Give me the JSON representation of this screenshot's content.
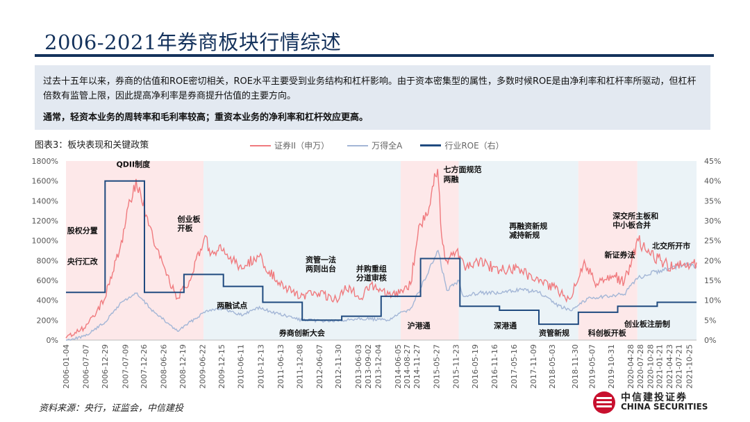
{
  "header": {
    "title": "2006-2021年券商板块行情综述"
  },
  "summary": {
    "text": "过去十五年以来，券商的估值和ROE密切相关，ROE水平主要受到业务结构和杠杆影响。由于资本密集型的属性，多数时候ROE是由净利率和杠杆率所驱动，但杠杆倍数有监管上限，因此提高净利率是券商提升估值的主要方向。",
    "bold": "通常，轻资本业务的周转率和毛利率较高；重资本业务的净利率和杠杆效应更高。"
  },
  "figure": {
    "label": "图表3：板块表现和关键政策"
  },
  "source": "资料来源：央行，证监会，中信建投",
  "logo": {
    "name": "中信建投证券",
    "en": "CHINA SECURITIES"
  },
  "colors": {
    "securities": "#f07a7e",
    "wind_a": "#a3b6d6",
    "roe": "#1f4a7f",
    "band": "#fde8e9",
    "band_light": "#ebf3f7",
    "title": "#14325c",
    "logo_red": "#c8102e"
  },
  "chart_data": {
    "type": "line",
    "series": [
      {
        "name": "证券II（申万）",
        "axis": "left",
        "style": "noisy-line",
        "x": [
          "2006-01-04",
          "2006-07-01",
          "2007-01-01",
          "2007-06-01",
          "2007-10-15",
          "2008-04-01",
          "2008-11-01",
          "2009-03-01",
          "2009-07-15",
          "2009-09-01",
          "2009-12-15",
          "2010-07-01",
          "2010-11-10",
          "2011-06-01",
          "2011-12-15",
          "2012-05-01",
          "2012-12-01",
          "2013-02-01",
          "2013-07-01",
          "2013-09-20",
          "2014-04-01",
          "2014-10-01",
          "2014-12-15",
          "2015-03-01",
          "2015-05-01",
          "2015-06-08",
          "2015-07-15",
          "2015-09-01",
          "2015-12-01",
          "2016-03-01",
          "2016-07-01",
          "2017-01-01",
          "2017-07-01",
          "2018-01-01",
          "2018-06-01",
          "2018-10-15",
          "2019-02-25",
          "2019-06-01",
          "2019-12-01",
          "2020-03-01",
          "2020-07-10",
          "2020-10-01",
          "2021-02-01",
          "2021-06-01",
          "2021-09-01",
          "2021-12-31"
        ],
        "values": [
          20,
          120,
          420,
          1000,
          1620,
          950,
          420,
          600,
          1050,
          850,
          900,
          720,
          850,
          580,
          430,
          480,
          400,
          550,
          420,
          560,
          430,
          560,
          1150,
          1250,
          1550,
          1720,
          1050,
          800,
          900,
          740,
          800,
          700,
          720,
          580,
          520,
          410,
          800,
          580,
          650,
          580,
          1000,
          880,
          800,
          720,
          760,
          780
        ]
      },
      {
        "name": "万得全A",
        "axis": "left",
        "style": "noisy-line",
        "x": [
          "2006-01-04",
          "2006-07-01",
          "2007-01-01",
          "2007-06-01",
          "2007-10-15",
          "2008-04-01",
          "2008-11-01",
          "2009-08-01",
          "2009-12-01",
          "2010-07-01",
          "2010-11-10",
          "2011-06-01",
          "2012-01-01",
          "2012-12-01",
          "2013-06-01",
          "2014-03-01",
          "2014-10-01",
          "2015-01-01",
          "2015-06-12",
          "2015-09-01",
          "2015-12-22",
          "2016-02-01",
          "2016-07-01",
          "2017-01-01",
          "2017-07-01",
          "2018-01-01",
          "2018-06-01",
          "2018-10-15",
          "2019-04-01",
          "2019-12-01",
          "2020-03-01",
          "2020-07-10",
          "2021-02-01",
          "2021-09-01",
          "2021-12-31"
        ],
        "values": [
          0,
          40,
          180,
          380,
          470,
          280,
          90,
          300,
          320,
          250,
          330,
          260,
          200,
          190,
          220,
          200,
          320,
          520,
          900,
          500,
          600,
          440,
          480,
          470,
          510,
          480,
          360,
          300,
          420,
          450,
          460,
          630,
          700,
          760,
          740
        ]
      },
      {
        "name": "行业ROE（右）",
        "axis": "right",
        "style": "step",
        "x": [
          "2006-01-04",
          "2007-01-01",
          "2008-01-01",
          "2009-01-01",
          "2010-01-01",
          "2011-01-01",
          "2012-01-01",
          "2013-01-01",
          "2014-01-01",
          "2015-01-01",
          "2016-01-01",
          "2017-01-01",
          "2018-01-01",
          "2019-01-01",
          "2020-01-01",
          "2021-01-01",
          "2021-12-31"
        ],
        "values": [
          12,
          40,
          12,
          16.5,
          13.5,
          9.5,
          5,
          6,
          11,
          20.5,
          8.5,
          7.5,
          4,
          7,
          8.5,
          9.5,
          9.5
        ]
      }
    ],
    "left_axis": {
      "min": 0,
      "max": 1800,
      "ticks": [
        "0%",
        "200%",
        "400%",
        "600%",
        "800%",
        "1000%",
        "1200%",
        "1400%",
        "1600%",
        "1800%"
      ]
    },
    "right_axis": {
      "min": 0,
      "max": 45,
      "ticks": [
        "0%",
        "5%",
        "10%",
        "15%",
        "20%",
        "25%",
        "30%",
        "35%",
        "40%",
        "45%"
      ]
    },
    "x_range": [
      "2006-01-04",
      "2021-12-31"
    ],
    "x_ticks": [
      "2006-01-04",
      "2006-07-07",
      "2006-12-29",
      "2007-07-09",
      "2007-12-26",
      "2008-06-26",
      "2008-12-19",
      "2009-06-22",
      "2009-12-15",
      "2010-06-11",
      "2010-12-13",
      "2011-06-13",
      "2011-12-08",
      "2012-06-07",
      "2012-11-30",
      "2013-06-03",
      "2013-09-02",
      "2013-12-04",
      "2014-06-05",
      "2014-08-27",
      "2014-11-27",
      "2015-05-27",
      "2015-11-23",
      "2016-05-19",
      "2016-11-16",
      "2017-05-16",
      "2017-11-09",
      "2018-05-03",
      "2018-11-30",
      "2019-05-07",
      "2019-10-31",
      "2020-04-28",
      "2020-07-28",
      "2020-10-28",
      "2021-01-21",
      "2021-04-23",
      "2021-07-21",
      "2021-10-25"
    ],
    "shaded_periods": [
      {
        "start": "2006-01-04",
        "end": "2009-07-01",
        "tone": "band"
      },
      {
        "start": "2009-07-01",
        "end": "2014-07-01",
        "tone": "band_light"
      },
      {
        "start": "2014-07-01",
        "end": "2015-12-20",
        "tone": "band"
      },
      {
        "start": "2015-12-20",
        "end": "2019-01-01",
        "tone": "band_light"
      },
      {
        "start": "2019-01-01",
        "end": "2020-07-01",
        "tone": "band"
      },
      {
        "start": "2020-07-01",
        "end": "2021-12-31",
        "tone": "band_light"
      }
    ],
    "annotations": [
      {
        "text": "QDII制度",
        "x": "2007-04-15",
        "y": 1740
      },
      {
        "text": "股权分置",
        "x": "2006-01-15",
        "y": 1075
      },
      {
        "text": "央行汇改",
        "x": "2006-01-15",
        "y": 765
      },
      {
        "text": "创业板",
        "x": "2008-11-01",
        "y": 1190
      },
      {
        "text": "开板",
        "x": "2008-11-01",
        "y": 1100
      },
      {
        "text": "两融试点",
        "x": "2009-11-01",
        "y": 320
      },
      {
        "text": "券商创新大会",
        "x": "2011-06-01",
        "y": 45
      },
      {
        "text": "资管一法",
        "x": "2012-02-01",
        "y": 780
      },
      {
        "text": "两则出台",
        "x": "2012-02-01",
        "y": 690
      },
      {
        "text": "并购重组",
        "x": "2013-05-15",
        "y": 690
      },
      {
        "text": "分道审核",
        "x": "2013-05-15",
        "y": 600
      },
      {
        "text": "沪港通",
        "x": "2014-09-01",
        "y": 120
      },
      {
        "text": "七方面规范",
        "x": "2015-08-01",
        "y": 1690
      },
      {
        "text": "两融",
        "x": "2015-08-01",
        "y": 1590
      },
      {
        "text": "深港通",
        "x": "2016-11-10",
        "y": 120
      },
      {
        "text": "再融资新规",
        "x": "2017-04-01",
        "y": 1120
      },
      {
        "text": "减持新规",
        "x": "2017-04-01",
        "y": 1030
      },
      {
        "text": "资管新规",
        "x": "2018-01-01",
        "y": 45
      },
      {
        "text": "科创板开板",
        "x": "2019-04-01",
        "y": 45
      },
      {
        "text": "新证券法",
        "x": "2019-09-01",
        "y": 830
      },
      {
        "text": "深交所主板和",
        "x": "2019-11-15",
        "y": 1220
      },
      {
        "text": "中小板合并",
        "x": "2019-11-15",
        "y": 1130
      },
      {
        "text": "创业板注册制",
        "x": "2020-03-01",
        "y": 135
      },
      {
        "text": "北交所开市",
        "x": "2020-11-15",
        "y": 920
      }
    ]
  }
}
